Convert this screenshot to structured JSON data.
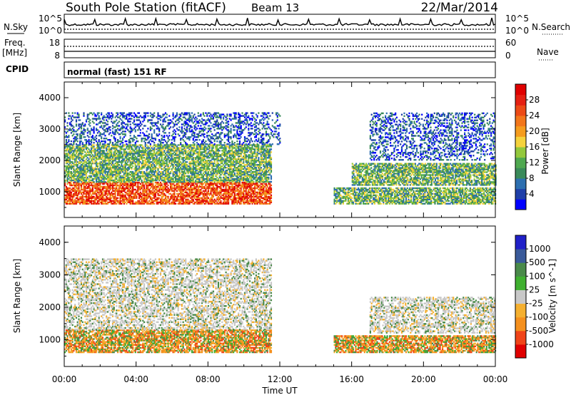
{
  "header": {
    "station_title": "South Pole Station (fitACF)",
    "beam": "Beam 13",
    "date": "22/Mar/2014"
  },
  "noise_panel": {
    "left_label": "N.Sky",
    "right_label": "N.Search",
    "ticks_left": [
      "10^5",
      "10^0"
    ],
    "ticks_right": [
      "10^5",
      "10^0"
    ]
  },
  "freq_panel": {
    "left_label_1": "Freq.",
    "left_label_2": "[MHz]",
    "ticks_left": [
      "18",
      "8"
    ],
    "right_label": "Nave",
    "ticks_right": [
      "60",
      "0"
    ]
  },
  "cpid_panel": {
    "label": "CPID",
    "text": "normal (fast) 151 RF"
  },
  "chart_data": [
    {
      "type": "heatmap",
      "title": "",
      "xlabel": "",
      "ylabel": "Slant Range [km]",
      "x_ticks": [
        "00:00",
        "04:00",
        "08:00",
        "12:00",
        "16:00",
        "20:00",
        "00:00"
      ],
      "y_ticks": [
        1000,
        2000,
        3000,
        4000
      ],
      "ylim": [
        180,
        4500
      ],
      "colorbar": {
        "label": "Power [dB]",
        "ticks": [
          "28",
          "24",
          "20",
          "16",
          "12",
          "8",
          "4"
        ],
        "colors": [
          "#0000ff",
          "#1f3fa8",
          "#2d6fb0",
          "#3a8a5a",
          "#4fa850",
          "#93c83c",
          "#f5d23c",
          "#f59c1e",
          "#f2761b",
          "#ec4a16",
          "#e52012",
          "#e00000"
        ]
      },
      "echo_regions": [
        {
          "t_start": 0.0,
          "t_end": 11.5,
          "range_low": 600,
          "range_high": 1300,
          "level": "high"
        },
        {
          "t_start": 0.0,
          "t_end": 11.5,
          "range_low": 1300,
          "range_high": 2500,
          "level": "medium"
        },
        {
          "t_start": 0.0,
          "t_end": 12.0,
          "range_low": 2500,
          "range_high": 3500,
          "level": "low"
        },
        {
          "t_start": 15.0,
          "t_end": 24.0,
          "range_low": 600,
          "range_high": 1100,
          "level": "medium"
        },
        {
          "t_start": 16.0,
          "t_end": 24.0,
          "range_low": 1200,
          "range_high": 1900,
          "level": "medium"
        },
        {
          "t_start": 17.0,
          "t_end": 24.0,
          "range_low": 2000,
          "range_high": 3500,
          "level": "low"
        }
      ]
    },
    {
      "type": "heatmap",
      "title": "",
      "xlabel": "Time UT",
      "ylabel": "Slant Range [km]",
      "x_ticks": [
        "00:00",
        "04:00",
        "08:00",
        "12:00",
        "16:00",
        "20:00",
        "00:00"
      ],
      "y_ticks": [
        1000,
        2000,
        3000,
        4000
      ],
      "ylim": [
        180,
        4500
      ],
      "colorbar": {
        "label": "Velocity [m s^-1]",
        "ticks": [
          "1000",
          "500",
          "100",
          "25",
          "-25",
          "-100",
          "-500",
          "-1000"
        ],
        "colors": [
          "#e00000",
          "#f04418",
          "#f5901e",
          "#f5b030",
          "#c8c8c8",
          "#40b030",
          "#4a8a4a",
          "#3a5a9a",
          "#2020c8"
        ]
      },
      "echo_regions": [
        {
          "t_start": 0.0,
          "t_end": 11.5,
          "range_low": 600,
          "range_high": 1300,
          "level": "approaching"
        },
        {
          "t_start": 0.0,
          "t_end": 11.5,
          "range_low": 1300,
          "range_high": 3500,
          "level": "ground"
        },
        {
          "t_start": 15.0,
          "t_end": 24.0,
          "range_low": 600,
          "range_high": 1100,
          "level": "approaching"
        },
        {
          "t_start": 17.0,
          "t_end": 24.0,
          "range_low": 1200,
          "range_high": 2300,
          "level": "ground"
        }
      ]
    }
  ]
}
